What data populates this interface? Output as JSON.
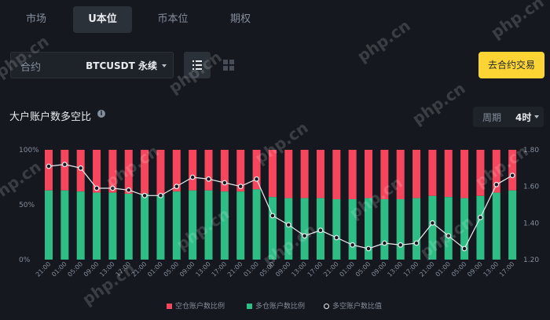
{
  "tabs": [
    {
      "label": "市场",
      "active": false
    },
    {
      "label": "U本位",
      "active": true
    },
    {
      "label": "币本位",
      "active": false
    },
    {
      "label": "期权",
      "active": false
    }
  ],
  "contract": {
    "label": "合约",
    "value": "BTCUSDT 永续"
  },
  "trade_button": "去合约交易",
  "chart_title": "大户账户数多空比",
  "info_icon_glyph": "i",
  "period": {
    "label": "周期",
    "value": "4时"
  },
  "legend": {
    "short": "空仓账户数比例",
    "long": "多仓账户数比例",
    "ratio": "多空账户数比值"
  },
  "watermark": "php.cn",
  "colors": {
    "short": "#f6465d",
    "long": "#2ebd85",
    "accent": "#fcd535"
  },
  "chart_data": {
    "type": "bar",
    "stacked": true,
    "left_axis_ticks": [
      "100%",
      "50%",
      "0%"
    ],
    "right_axis_ticks": [
      "1.80",
      "1.60",
      "1.40",
      "1.20"
    ],
    "right_ylim": [
      1.2,
      1.8
    ],
    "x_tick_labels": [
      "21:00",
      "01:00",
      "05:00",
      "09:00",
      "13:00",
      "17:00",
      "21:00",
      "01:00",
      "05:00",
      "09:00",
      "13:00",
      "17:00",
      "21:00",
      "01:00",
      "05:00",
      "09:00",
      "13:00",
      "17:00",
      "21:00",
      "01:00",
      "05:00",
      "09:00",
      "13:00",
      "17:00",
      "21:00",
      "01:00",
      "05:00",
      "09:00",
      "13:00",
      "17:00"
    ],
    "long_pct": [
      63,
      63,
      62,
      61,
      61,
      60,
      60,
      59,
      62,
      63,
      63,
      62,
      62,
      64,
      57,
      56,
      56,
      56,
      55,
      55,
      56,
      55,
      55,
      56,
      58,
      57,
      56,
      58,
      61,
      63
    ],
    "ratio": [
      1.71,
      1.72,
      1.7,
      1.59,
      1.59,
      1.58,
      1.55,
      1.55,
      1.6,
      1.65,
      1.64,
      1.62,
      1.6,
      1.64,
      1.44,
      1.39,
      1.33,
      1.36,
      1.32,
      1.28,
      1.26,
      1.29,
      1.28,
      1.29,
      1.4,
      1.33,
      1.26,
      1.43,
      1.61,
      1.66
    ]
  }
}
